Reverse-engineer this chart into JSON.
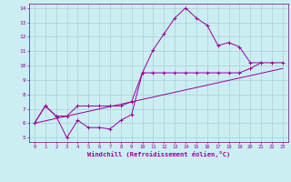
{
  "xlabel": "Windchill (Refroidissement éolien,°C)",
  "bg_color": "#cbeef3",
  "line_color": "#990099",
  "grid_color": "#a0c8cc",
  "spine_color": "#7a007a",
  "xlim": [
    -0.5,
    23.5
  ],
  "ylim": [
    4.7,
    14.3
  ],
  "xticks": [
    0,
    1,
    2,
    3,
    4,
    5,
    6,
    7,
    8,
    9,
    10,
    11,
    12,
    13,
    14,
    15,
    16,
    17,
    18,
    19,
    20,
    21,
    22,
    23
  ],
  "yticks": [
    5,
    6,
    7,
    8,
    9,
    10,
    11,
    12,
    13,
    14
  ],
  "line1_x": [
    0,
    1,
    2,
    3,
    4,
    5,
    6,
    7,
    8,
    9,
    10,
    11,
    12,
    13,
    14,
    15,
    16,
    17,
    18,
    19,
    20,
    21
  ],
  "line1_y": [
    6.0,
    7.2,
    6.5,
    5.0,
    6.2,
    5.7,
    5.7,
    5.6,
    6.2,
    6.6,
    9.5,
    11.1,
    12.2,
    13.3,
    14.0,
    13.3,
    12.8,
    11.4,
    11.6,
    11.3,
    10.2,
    10.2
  ],
  "line2_x": [
    0,
    1,
    2,
    3,
    4,
    5,
    6,
    7,
    8,
    9,
    10,
    11,
    12,
    13,
    14,
    15,
    16,
    17,
    18,
    19,
    20,
    21,
    22,
    23
  ],
  "line2_y": [
    6.0,
    7.2,
    6.5,
    6.5,
    7.2,
    7.2,
    7.2,
    7.2,
    7.2,
    7.5,
    9.5,
    9.5,
    9.5,
    9.5,
    9.5,
    9.5,
    9.5,
    9.5,
    9.5,
    9.5,
    9.8,
    10.2,
    10.2,
    10.2
  ],
  "line3_x": [
    0,
    23
  ],
  "line3_y": [
    6.0,
    9.8
  ]
}
